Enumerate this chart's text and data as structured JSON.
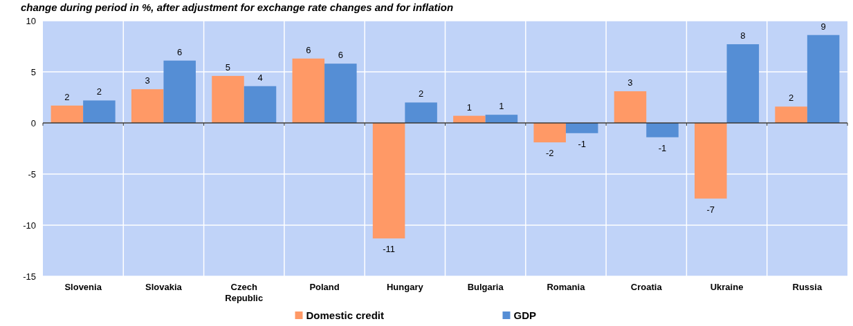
{
  "chart_data": {
    "type": "bar",
    "title": "change during period in %, after adjustment for exchange rate changes and for inflation",
    "categories": [
      "Slovenia",
      "Slovakia",
      "Czech Republic",
      "Poland",
      "Hungary",
      "Bulgaria",
      "Romania",
      "Croatia",
      "Ukraine",
      "Russia"
    ],
    "series": [
      {
        "name": "Domestic credit",
        "color": "#ff9966",
        "values": [
          1.7,
          3.3,
          4.6,
          6.3,
          -11.3,
          0.7,
          -1.9,
          3.1,
          -7.4,
          1.6
        ],
        "value_labels": [
          "2",
          "3",
          "5",
          "6",
          "-11",
          "1",
          "-2",
          "3",
          "-7",
          "2"
        ]
      },
      {
        "name": "GDP",
        "color": "#558ed5",
        "values": [
          2.2,
          6.1,
          3.6,
          5.8,
          2.0,
          0.8,
          -1.0,
          -1.4,
          7.7,
          8.6
        ],
        "value_labels": [
          "2",
          "6",
          "4",
          "6",
          "2",
          "1",
          "-1",
          "-1",
          "8",
          "9"
        ]
      }
    ],
    "ylim": [
      -15,
      10
    ],
    "yticks": [
      -15,
      -10,
      -5,
      0,
      5,
      10
    ],
    "grid": true,
    "legend": "bottom"
  }
}
